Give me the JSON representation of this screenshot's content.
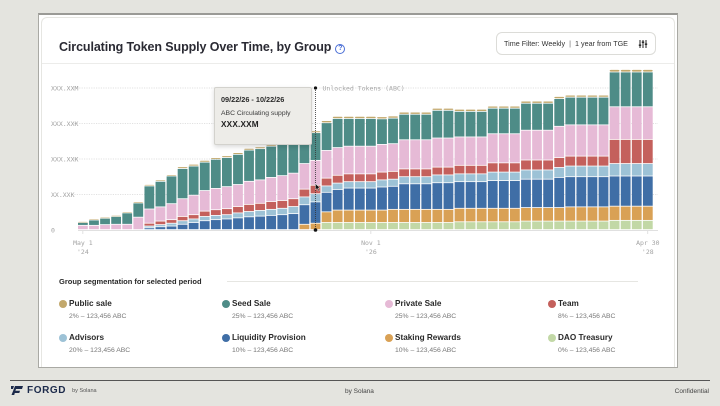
{
  "card": {
    "title": "Circulating Token Supply Over Time, by Group",
    "help_icon": "question-circle-icon",
    "filter": {
      "label": "Time Filter: Weekly",
      "separator": "|",
      "range": "1 year from TGE",
      "icon": "sliders-icon"
    }
  },
  "tooltip": {
    "date_range": "09/22/26 - 10/22/26",
    "label": "ABC Circulating supply",
    "value": "XXX.XXM"
  },
  "segmentation": {
    "title": "Group segmentation for selected period",
    "groups": [
      {
        "name": "Public sale",
        "pct": "2%",
        "amount": "123,456 ABC",
        "color": "#c2a86c"
      },
      {
        "name": "Seed Sale",
        "pct": "25%",
        "amount": "123,456 ABC",
        "color": "#4e8c87"
      },
      {
        "name": "Private Sale",
        "pct": "25%",
        "amount": "123,456 ABC",
        "color": "#e6bad6"
      },
      {
        "name": "Team",
        "pct": "8%",
        "amount": "123,456 ABC",
        "color": "#c4605c"
      },
      {
        "name": "Advisors",
        "pct": "20%",
        "amount": "123,456 ABC",
        "color": "#9dc2d6"
      },
      {
        "name": "Liquidity Provision",
        "pct": "10%",
        "amount": "123,456 ABC",
        "color": "#3f6ea6"
      },
      {
        "name": "Staking Rewards",
        "pct": "10%",
        "amount": "123,456 ABC",
        "color": "#d9a155"
      },
      {
        "name": "DAO Treasury",
        "pct": "0%",
        "amount": "123,456 ABC",
        "color": "#c2d8a6"
      }
    ]
  },
  "footer": {
    "logo_text": "FORGD",
    "logo_sub": "by Solana",
    "center": "by Solana",
    "right": "Confidential"
  },
  "chart_data": {
    "type": "bar",
    "stacked": true,
    "title": "Circulating Token Supply Over Time, by Group",
    "xlabel": "",
    "ylabel": "",
    "y_tick_labels": [
      "0",
      "XX.XXK",
      "XXX.XXK",
      "XXX.XXK",
      "XXX.XXM"
    ],
    "y_tick_values": [
      0,
      1,
      2,
      3,
      4
    ],
    "ylim": [
      0,
      4.2
    ],
    "x_tick_labels": [
      {
        "label": "May 1",
        "sub": "'24",
        "index": 0
      },
      {
        "label": "Nov 1",
        "sub": "'26",
        "index": 26
      },
      {
        "label": "Apr 30",
        "sub": "'28",
        "index": 51
      }
    ],
    "annotation": {
      "label": "Unlocked Tokens (ABC)",
      "index": 21
    },
    "grid": true,
    "legend": "bottom",
    "units_note": "values in y-grid units (axis labels are placeholders)",
    "series": [
      {
        "name": "DAO Treasury",
        "color": "#c2d8a6",
        "values": [
          0,
          0,
          0,
          0,
          0,
          0,
          0,
          0,
          0,
          0,
          0,
          0,
          0,
          0,
          0,
          0,
          0,
          0,
          0,
          0,
          0,
          0,
          0.2,
          0.2,
          0.2,
          0.2,
          0.2,
          0.2,
          0.2,
          0.2,
          0.2,
          0.2,
          0.2,
          0.2,
          0.22,
          0.22,
          0.22,
          0.22,
          0.22,
          0.22,
          0.24,
          0.24,
          0.24,
          0.24,
          0.24,
          0.24,
          0.24,
          0.24,
          0.26,
          0.26,
          0.26,
          0.26
        ]
      },
      {
        "name": "Staking Rewards",
        "color": "#d9a155",
        "values": [
          0,
          0,
          0,
          0,
          0,
          0,
          0,
          0,
          0,
          0,
          0,
          0,
          0,
          0,
          0,
          0,
          0,
          0,
          0,
          0,
          0.15,
          0.18,
          0.3,
          0.35,
          0.35,
          0.35,
          0.35,
          0.35,
          0.37,
          0.37,
          0.37,
          0.37,
          0.37,
          0.37,
          0.38,
          0.38,
          0.38,
          0.38,
          0.38,
          0.38,
          0.38,
          0.38,
          0.38,
          0.38,
          0.4,
          0.4,
          0.4,
          0.4,
          0.4,
          0.4,
          0.4,
          0.4
        ]
      },
      {
        "name": "Liquidity Provision",
        "color": "#3f6ea6",
        "values": [
          0,
          0,
          0,
          0,
          0,
          0,
          0.05,
          0.08,
          0.1,
          0.15,
          0.2,
          0.25,
          0.28,
          0.3,
          0.33,
          0.36,
          0.38,
          0.4,
          0.42,
          0.45,
          0.55,
          0.6,
          0.55,
          0.58,
          0.62,
          0.62,
          0.62,
          0.65,
          0.65,
          0.72,
          0.72,
          0.72,
          0.75,
          0.75,
          0.75,
          0.75,
          0.75,
          0.78,
          0.78,
          0.78,
          0.8,
          0.8,
          0.8,
          0.85,
          0.85,
          0.85,
          0.85,
          0.85,
          0.85,
          0.85,
          0.85,
          0.85
        ]
      },
      {
        "name": "Advisors",
        "color": "#9dc2d6",
        "values": [
          0,
          0,
          0,
          0,
          0,
          0,
          0.05,
          0.06,
          0.08,
          0.1,
          0.1,
          0.12,
          0.12,
          0.12,
          0.14,
          0.15,
          0.16,
          0.17,
          0.18,
          0.2,
          0.22,
          0.23,
          0.18,
          0.18,
          0.18,
          0.18,
          0.18,
          0.2,
          0.2,
          0.2,
          0.2,
          0.2,
          0.22,
          0.22,
          0.22,
          0.22,
          0.22,
          0.24,
          0.24,
          0.24,
          0.26,
          0.26,
          0.26,
          0.28,
          0.3,
          0.3,
          0.3,
          0.3,
          0.35,
          0.35,
          0.35,
          0.35
        ]
      },
      {
        "name": "Team",
        "color": "#c4605c",
        "values": [
          0,
          0,
          0,
          0,
          0,
          0,
          0.08,
          0.1,
          0.1,
          0.12,
          0.12,
          0.15,
          0.16,
          0.17,
          0.18,
          0.2,
          0.2,
          0.22,
          0.22,
          0.22,
          0.22,
          0.24,
          0.22,
          0.22,
          0.22,
          0.22,
          0.22,
          0.22,
          0.22,
          0.22,
          0.22,
          0.22,
          0.22,
          0.22,
          0.24,
          0.24,
          0.24,
          0.26,
          0.26,
          0.26,
          0.28,
          0.28,
          0.28,
          0.28,
          0.28,
          0.28,
          0.28,
          0.28,
          0.68,
          0.68,
          0.68,
          0.68
        ]
      },
      {
        "name": "Private Sale",
        "color": "#e6bad6",
        "values": [
          0.12,
          0.12,
          0.14,
          0.15,
          0.15,
          0.35,
          0.4,
          0.4,
          0.45,
          0.5,
          0.55,
          0.58,
          0.6,
          0.62,
          0.62,
          0.65,
          0.66,
          0.68,
          0.7,
          0.72,
          0.72,
          0.7,
          0.78,
          0.78,
          0.78,
          0.78,
          0.78,
          0.78,
          0.78,
          0.82,
          0.82,
          0.82,
          0.82,
          0.82,
          0.8,
          0.8,
          0.8,
          0.82,
          0.82,
          0.82,
          0.84,
          0.84,
          0.84,
          0.88,
          0.88,
          0.88,
          0.88,
          0.88,
          0.92,
          0.92,
          0.92,
          0.92
        ]
      },
      {
        "name": "Seed Sale",
        "color": "#4e8c87",
        "values": [
          0.08,
          0.15,
          0.18,
          0.22,
          0.32,
          0.4,
          0.65,
          0.72,
          0.78,
          0.85,
          0.82,
          0.8,
          0.82,
          0.82,
          0.85,
          0.88,
          0.88,
          0.88,
          0.9,
          0.9,
          0.75,
          0.78,
          0.78,
          0.82,
          0.78,
          0.78,
          0.78,
          0.72,
          0.72,
          0.72,
          0.72,
          0.72,
          0.78,
          0.78,
          0.72,
          0.72,
          0.72,
          0.72,
          0.72,
          0.72,
          0.76,
          0.76,
          0.76,
          0.78,
          0.78,
          0.78,
          0.78,
          0.78,
          0.98,
          0.98,
          0.98,
          0.98
        ]
      },
      {
        "name": "Public sale",
        "color": "#c2a86c",
        "values": [
          0.03,
          0.03,
          0.03,
          0.03,
          0.03,
          0.04,
          0.04,
          0.04,
          0.04,
          0.05,
          0.05,
          0.05,
          0.05,
          0.05,
          0.05,
          0.05,
          0.05,
          0.05,
          0.05,
          0.05,
          0.05,
          0.05,
          0.06,
          0.06,
          0.06,
          0.06,
          0.06,
          0.06,
          0.06,
          0.06,
          0.06,
          0.06,
          0.06,
          0.06,
          0.06,
          0.06,
          0.06,
          0.06,
          0.06,
          0.06,
          0.06,
          0.06,
          0.06,
          0.06,
          0.06,
          0.06,
          0.06,
          0.06,
          0.07,
          0.07,
          0.07,
          0.07
        ]
      }
    ]
  }
}
